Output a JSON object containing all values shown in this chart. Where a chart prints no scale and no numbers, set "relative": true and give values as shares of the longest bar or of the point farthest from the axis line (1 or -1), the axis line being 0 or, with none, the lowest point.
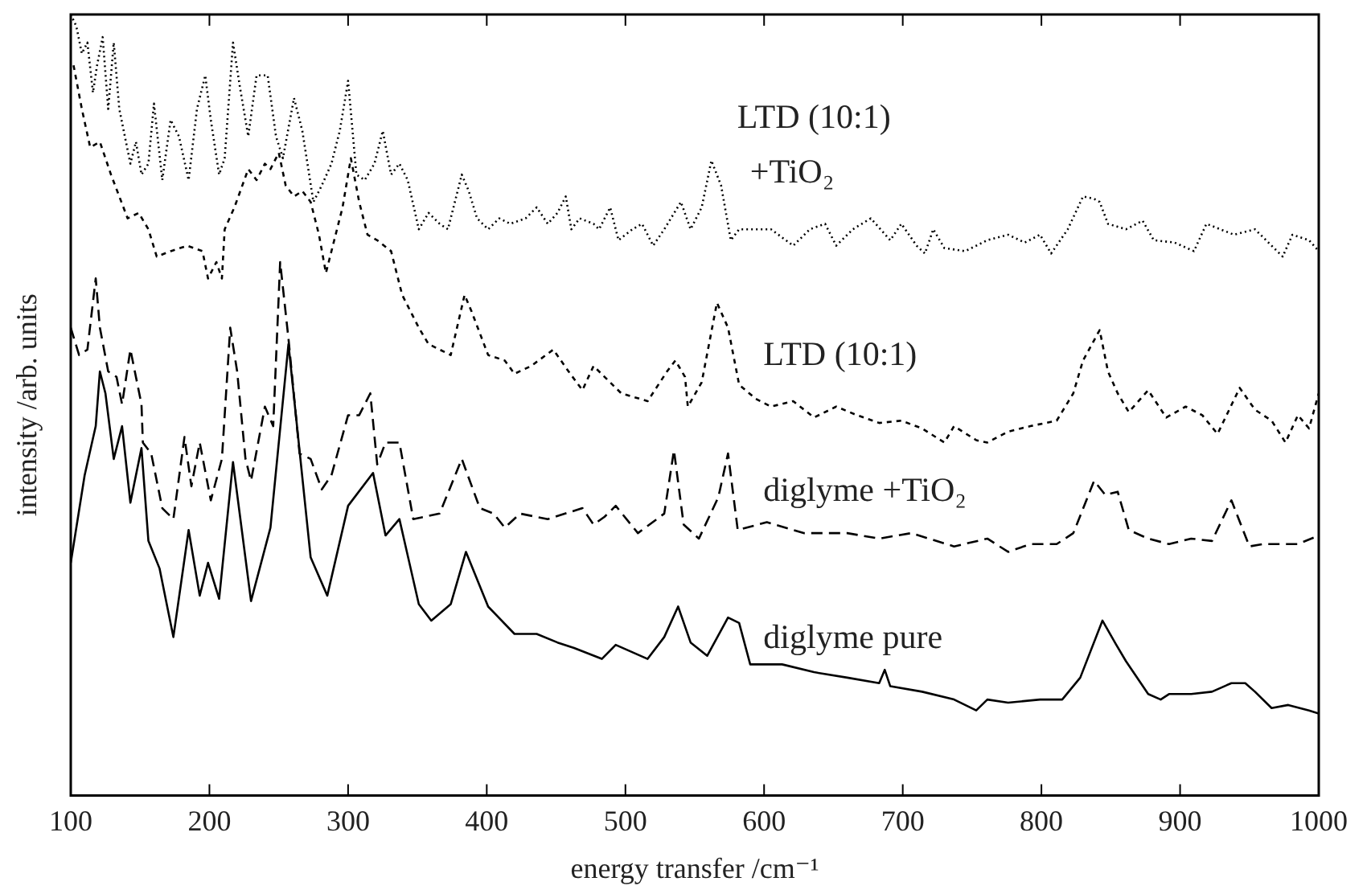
{
  "chart_data": {
    "type": "line",
    "xlabel": "energy transfer /cm⁻¹",
    "ylabel": "intensity /arb. units",
    "xlim": [
      100,
      1000
    ],
    "xticks": [
      100,
      200,
      300,
      400,
      500,
      600,
      700,
      800,
      900,
      1000
    ],
    "relative": true,
    "grid": false,
    "legend": false,
    "marker": "none",
    "series": [
      {
        "name": "LTD (10:1) +TiO₂",
        "color": "#000000",
        "line_style": "dotted",
        "x": [
          100,
          104,
          108,
          112,
          116,
          119,
          123,
          127,
          131,
          135,
          139,
          143,
          147,
          151,
          156,
          160,
          166,
          172,
          178,
          185,
          191,
          197,
          201,
          207,
          211,
          217,
          222,
          228,
          234,
          242,
          248,
          253,
          261,
          267,
          275,
          281,
          288,
          294,
          300,
          306,
          312,
          319,
          325,
          331,
          337,
          343,
          351,
          358,
          366,
          372,
          382,
          387,
          393,
          401,
          409,
          417,
          428,
          436,
          444,
          451,
          457,
          461,
          467,
          477,
          481,
          489,
          495,
          505,
          512,
          520,
          528,
          540,
          547,
          555,
          562,
          569,
          576,
          582,
          594,
          605,
          621,
          633,
          644,
          652,
          664,
          677,
          691,
          699,
          710,
          716,
          722,
          730,
          745,
          761,
          776,
          788,
          799,
          807,
          819,
          830,
          838,
          842,
          848,
          861,
          873,
          881,
          896,
          910,
          919,
          939,
          954,
          974,
          981,
          993,
          1000
        ],
        "values": [
          1,
          0.985,
          0.95,
          0.964,
          0.9,
          0.935,
          0.971,
          0.879,
          0.964,
          0.879,
          0.844,
          0.809,
          0.837,
          0.795,
          0.809,
          0.886,
          0.788,
          0.865,
          0.844,
          0.788,
          0.879,
          0.922,
          0.865,
          0.795,
          0.816,
          0.964,
          0.907,
          0.844,
          0.922,
          0.922,
          0.844,
          0.816,
          0.893,
          0.851,
          0.76,
          0.781,
          0.809,
          0.851,
          0.915,
          0.795,
          0.788,
          0.809,
          0.851,
          0.795,
          0.809,
          0.788,
          0.725,
          0.746,
          0.732,
          0.725,
          0.795,
          0.774,
          0.739,
          0.725,
          0.739,
          0.732,
          0.739,
          0.753,
          0.732,
          0.746,
          0.767,
          0.725,
          0.739,
          0.732,
          0.725,
          0.753,
          0.711,
          0.725,
          0.732,
          0.704,
          0.725,
          0.76,
          0.725,
          0.753,
          0.813,
          0.781,
          0.711,
          0.725,
          0.725,
          0.725,
          0.704,
          0.725,
          0.732,
          0.704,
          0.725,
          0.739,
          0.711,
          0.732,
          0.704,
          0.694,
          0.725,
          0.701,
          0.697,
          0.711,
          0.718,
          0.708,
          0.718,
          0.694,
          0.725,
          0.767,
          0.764,
          0.76,
          0.732,
          0.725,
          0.736,
          0.711,
          0.708,
          0.697,
          0.732,
          0.718,
          0.725,
          0.69,
          0.718,
          0.711,
          0.697
        ]
      },
      {
        "name": "LTD (10:1)",
        "color": "#000000",
        "line_style": "dashed",
        "x": [
          102,
          108,
          114,
          121,
          129,
          135,
          141,
          149,
          156,
          162,
          172,
          184,
          195,
          199,
          205,
          209,
          211,
          218,
          228,
          234,
          240,
          244,
          250,
          255,
          261,
          267,
          273,
          279,
          284,
          290,
          296,
          302,
          308,
          314,
          321,
          331,
          339,
          351,
          358,
          374,
          384,
          389,
          401,
          413,
          420,
          432,
          448,
          459,
          469,
          477,
          485,
          497,
          516,
          530,
          536,
          543,
          545,
          555,
          566,
          574,
          582,
          594,
          605,
          621,
          636,
          652,
          667,
          683,
          699,
          714,
          730,
          737,
          753,
          761,
          776,
          792,
          811,
          823,
          830,
          842,
          848,
          855,
          863,
          877,
          890,
          904,
          916,
          927,
          943,
          954,
          966,
          976,
          985,
          993,
          1000
        ],
        "values": [
          0.935,
          0.879,
          0.83,
          0.837,
          0.795,
          0.767,
          0.739,
          0.746,
          0.725,
          0.69,
          0.697,
          0.704,
          0.697,
          0.662,
          0.683,
          0.662,
          0.725,
          0.753,
          0.802,
          0.788,
          0.809,
          0.802,
          0.823,
          0.781,
          0.767,
          0.774,
          0.76,
          0.718,
          0.669,
          0.711,
          0.753,
          0.816,
          0.76,
          0.718,
          0.711,
          0.697,
          0.641,
          0.599,
          0.578,
          0.564,
          0.641,
          0.62,
          0.564,
          0.557,
          0.54,
          0.55,
          0.571,
          0.543,
          0.519,
          0.55,
          0.536,
          0.515,
          0.505,
          0.543,
          0.557,
          0.536,
          0.498,
          0.529,
          0.631,
          0.599,
          0.526,
          0.508,
          0.498,
          0.505,
          0.484,
          0.498,
          0.487,
          0.477,
          0.48,
          0.47,
          0.452,
          0.473,
          0.455,
          0.452,
          0.466,
          0.473,
          0.48,
          0.515,
          0.557,
          0.596,
          0.543,
          0.515,
          0.491,
          0.519,
          0.484,
          0.498,
          0.487,
          0.463,
          0.522,
          0.494,
          0.48,
          0.452,
          0.487,
          0.47,
          0.515
        ]
      },
      {
        "name": "diglyme +TiO₂",
        "color": "#000000",
        "line_style": "dashed",
        "x": [
          100,
          106,
          112,
          118,
          121,
          127,
          133,
          137,
          143,
          151,
          152,
          158,
          166,
          174,
          182,
          187,
          193,
          201,
          209,
          215,
          220,
          226,
          230,
          240,
          246,
          251,
          257,
          265,
          273,
          281,
          288,
          300,
          308,
          316,
          321,
          327,
          337,
          347,
          366,
          382,
          395,
          405,
          413,
          424,
          444,
          469,
          477,
          485,
          493,
          509,
          528,
          535,
          542,
          553,
          567,
          574,
          581,
          602,
          629,
          660,
          683,
          706,
          737,
          761,
          776,
          792,
          811,
          823,
          838,
          846,
          855,
          863,
          877,
          892,
          908,
          923,
          937,
          950,
          960,
          974,
          985,
          1000
        ],
        "values": [
          0.599,
          0.564,
          0.571,
          0.662,
          0.599,
          0.543,
          0.536,
          0.501,
          0.571,
          0.501,
          0.452,
          0.438,
          0.368,
          0.354,
          0.459,
          0.396,
          0.452,
          0.378,
          0.431,
          0.599,
          0.543,
          0.431,
          0.403,
          0.498,
          0.473,
          0.683,
          0.585,
          0.438,
          0.431,
          0.392,
          0.41,
          0.487,
          0.487,
          0.515,
          0.424,
          0.452,
          0.452,
          0.354,
          0.361,
          0.431,
          0.368,
          0.361,
          0.343,
          0.361,
          0.354,
          0.368,
          0.347,
          0.357,
          0.371,
          0.336,
          0.361,
          0.442,
          0.347,
          0.329,
          0.382,
          0.438,
          0.34,
          0.35,
          0.336,
          0.336,
          0.329,
          0.336,
          0.319,
          0.329,
          0.312,
          0.322,
          0.322,
          0.336,
          0.403,
          0.385,
          0.389,
          0.34,
          0.329,
          0.322,
          0.329,
          0.326,
          0.378,
          0.319,
          0.322,
          0.322,
          0.322,
          0.333
        ]
      },
      {
        "name": "diglyme pure",
        "color": "#000000",
        "line_style": "solid",
        "x": [
          100,
          110,
          118,
          121,
          125,
          131,
          137,
          143,
          151,
          156,
          164,
          174,
          185,
          193,
          199,
          207,
          217,
          230,
          244,
          257,
          273,
          285,
          300,
          318,
          327,
          337,
          351,
          360,
          374,
          385,
          401,
          420,
          436,
          451,
          463,
          483,
          493,
          516,
          528,
          538,
          547,
          559,
          574,
          582,
          590,
          613,
          636,
          660,
          683,
          687,
          691,
          714,
          737,
          753,
          761,
          776,
          799,
          815,
          828,
          844,
          854,
          861,
          877,
          886,
          892,
          908,
          923,
          937,
          947,
          954,
          966,
          978,
          993,
          1000
        ],
        "values": [
          0.298,
          0.41,
          0.473,
          0.543,
          0.515,
          0.431,
          0.473,
          0.375,
          0.445,
          0.326,
          0.291,
          0.203,
          0.34,
          0.256,
          0.298,
          0.252,
          0.427,
          0.249,
          0.343,
          0.578,
          0.305,
          0.256,
          0.371,
          0.413,
          0.333,
          0.354,
          0.245,
          0.224,
          0.245,
          0.312,
          0.242,
          0.207,
          0.207,
          0.196,
          0.189,
          0.175,
          0.193,
          0.175,
          0.203,
          0.242,
          0.196,
          0.179,
          0.228,
          0.221,
          0.168,
          0.168,
          0.158,
          0.151,
          0.144,
          0.161,
          0.14,
          0.133,
          0.123,
          0.109,
          0.123,
          0.119,
          0.123,
          0.123,
          0.151,
          0.224,
          0.193,
          0.172,
          0.13,
          0.123,
          0.13,
          0.13,
          0.133,
          0.144,
          0.144,
          0.133,
          0.112,
          0.116,
          0.109,
          0.105
        ]
      }
    ]
  }
}
